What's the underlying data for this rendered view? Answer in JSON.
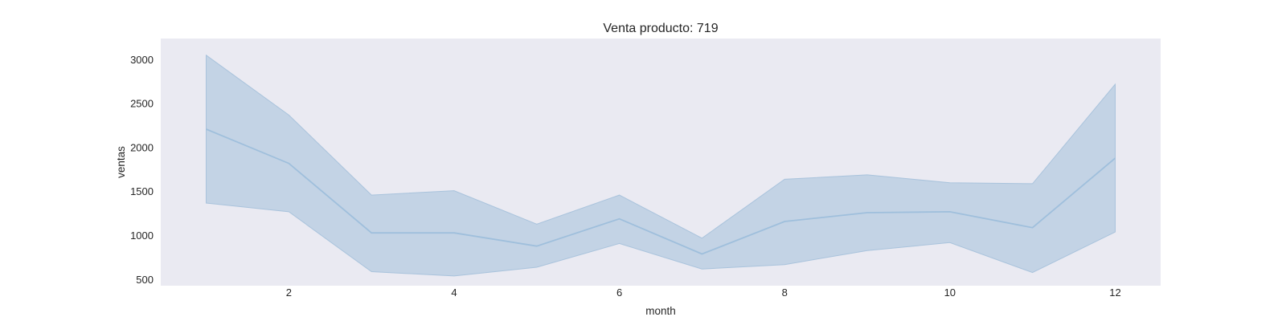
{
  "chart_data": {
    "type": "line",
    "title": "Venta producto: 719",
    "xlabel": "month",
    "ylabel": "ventas",
    "xlim": [
      0.45,
      12.55
    ],
    "ylim": [
      430,
      3240
    ],
    "xticks": [
      2,
      4,
      6,
      8,
      10,
      12
    ],
    "yticks": [
      500,
      1000,
      1500,
      2000,
      2500,
      3000
    ],
    "grid": false,
    "series": [
      {
        "x": [
          1,
          2,
          3,
          4,
          5,
          6,
          7,
          8,
          9,
          10,
          11,
          12
        ],
        "values": [
          2210,
          1820,
          1030,
          1030,
          880,
          1190,
          790,
          1160,
          1260,
          1270,
          1090,
          1880
        ],
        "lower": [
          1370,
          1270,
          590,
          540,
          640,
          910,
          620,
          670,
          830,
          920,
          580,
          1040
        ],
        "upper": [
          3050,
          2370,
          1460,
          1510,
          1130,
          1460,
          970,
          1640,
          1690,
          1600,
          1590,
          2720
        ],
        "color": "#9fbfdc"
      }
    ]
  }
}
